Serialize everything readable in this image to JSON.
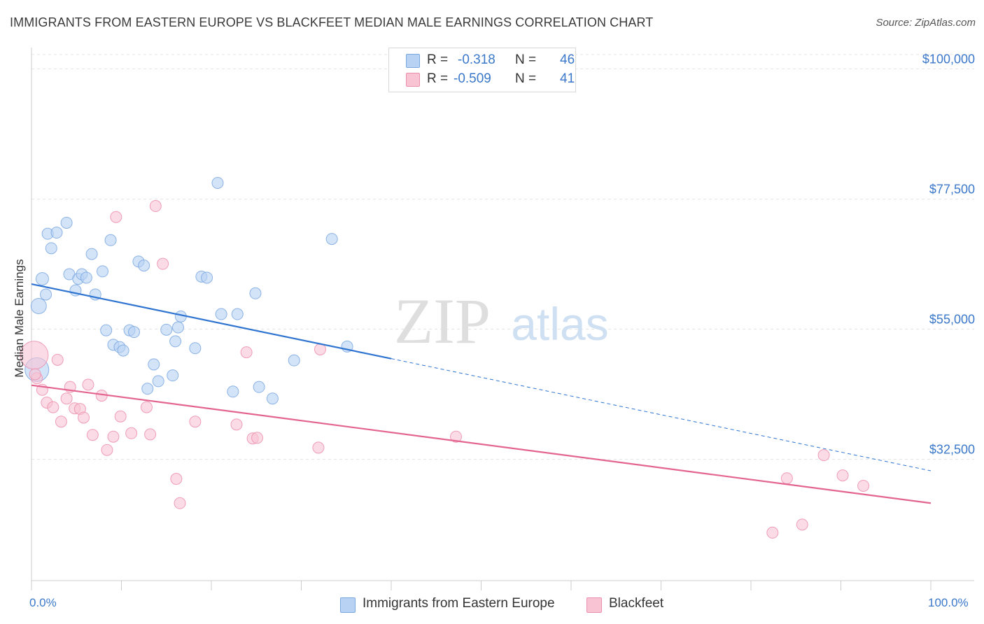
{
  "title": "IMMIGRANTS FROM EASTERN EUROPE VS BLACKFEET MEDIAN MALE EARNINGS CORRELATION CHART",
  "source": "Source: ZipAtlas.com",
  "watermark": {
    "zip": "ZIP",
    "atlas": "atlas"
  },
  "legend": {
    "series1": {
      "r_label": "R =",
      "r_value": "-0.318",
      "n_label": "N =",
      "n_value": "46"
    },
    "series2": {
      "r_label": "R =",
      "r_value": "-0.509",
      "n_label": "N =",
      "n_value": "41"
    }
  },
  "colors": {
    "blue_fill": "#b7d2f3",
    "blue_stroke": "#7aa7e0",
    "blue_line": "#2e74d0",
    "pink_fill": "#f8c3d3",
    "pink_stroke": "#ec8fac",
    "pink_line": "#e3648f",
    "axis_text": "#3b78c9",
    "grid": "#e4e4e4"
  },
  "chart_data": {
    "type": "scatter",
    "title": "IMMIGRANTS FROM EASTERN EUROPE VS BLACKFEET MEDIAN MALE EARNINGS CORRELATION CHART",
    "xlabel": "",
    "ylabel": "Median Male Earnings",
    "x_tick_labels": [
      "0.0%",
      "100.0%"
    ],
    "y_tick_labels": [
      "$32,500",
      "$55,000",
      "$77,500",
      "$100,000"
    ],
    "y_ticks": [
      32500,
      55000,
      77500,
      100000
    ],
    "xlim": [
      0,
      100
    ],
    "ylim": [
      11500,
      102500
    ],
    "grid": true,
    "legend_position": "top-center",
    "series": [
      {
        "name": "Immigrants from Eastern Europe",
        "color": "#b7d2f3",
        "points": [
          [
            0.6,
            48000
          ],
          [
            0.8,
            59000
          ],
          [
            1.2,
            63700
          ],
          [
            1.6,
            61000
          ],
          [
            1.8,
            71500
          ],
          [
            2.2,
            69000
          ],
          [
            2.8,
            71700
          ],
          [
            3.9,
            73400
          ],
          [
            4.2,
            64500
          ],
          [
            4.9,
            61700
          ],
          [
            5.2,
            63700
          ],
          [
            5.6,
            64500
          ],
          [
            6.1,
            63900
          ],
          [
            6.7,
            68000
          ],
          [
            7.1,
            61000
          ],
          [
            7.9,
            65000
          ],
          [
            8.3,
            54800
          ],
          [
            8.8,
            70400
          ],
          [
            9.1,
            52300
          ],
          [
            9.8,
            51900
          ],
          [
            10.2,
            51300
          ],
          [
            10.9,
            54800
          ],
          [
            11.4,
            54500
          ],
          [
            11.9,
            66700
          ],
          [
            12.5,
            66000
          ],
          [
            12.9,
            44700
          ],
          [
            13.6,
            48900
          ],
          [
            14.1,
            46000
          ],
          [
            15.0,
            54900
          ],
          [
            15.7,
            47000
          ],
          [
            16.0,
            52900
          ],
          [
            16.3,
            55300
          ],
          [
            16.6,
            57200
          ],
          [
            18.2,
            51700
          ],
          [
            18.9,
            64100
          ],
          [
            19.5,
            63900
          ],
          [
            20.7,
            80300
          ],
          [
            21.1,
            57600
          ],
          [
            22.4,
            44200
          ],
          [
            22.9,
            57600
          ],
          [
            24.9,
            61200
          ],
          [
            25.3,
            45000
          ],
          [
            26.8,
            43000
          ],
          [
            29.2,
            49600
          ],
          [
            33.4,
            70600
          ],
          [
            35.1,
            52000
          ]
        ]
      },
      {
        "name": "Blackfeet",
        "color": "#f8c3d3",
        "points": [
          [
            0.3,
            50500
          ],
          [
            0.6,
            46500
          ],
          [
            1.2,
            44500
          ],
          [
            1.7,
            42300
          ],
          [
            2.4,
            41500
          ],
          [
            2.9,
            49700
          ],
          [
            3.3,
            39000
          ],
          [
            3.9,
            43000
          ],
          [
            4.3,
            45000
          ],
          [
            4.8,
            41300
          ],
          [
            5.4,
            41200
          ],
          [
            5.8,
            39700
          ],
          [
            6.3,
            45400
          ],
          [
            6.8,
            36700
          ],
          [
            7.8,
            43500
          ],
          [
            8.4,
            34100
          ],
          [
            9.1,
            36400
          ],
          [
            9.4,
            74400
          ],
          [
            9.9,
            39900
          ],
          [
            11.1,
            37000
          ],
          [
            12.8,
            41500
          ],
          [
            13.2,
            36800
          ],
          [
            13.8,
            76300
          ],
          [
            14.6,
            66300
          ],
          [
            16.1,
            29100
          ],
          [
            16.5,
            24900
          ],
          [
            18.2,
            39000
          ],
          [
            22.8,
            38500
          ],
          [
            23.9,
            51000
          ],
          [
            24.6,
            36100
          ],
          [
            25.1,
            36200
          ],
          [
            31.9,
            34500
          ],
          [
            32.1,
            51500
          ],
          [
            47.2,
            36400
          ],
          [
            82.4,
            19800
          ],
          [
            84.0,
            29200
          ],
          [
            85.7,
            21200
          ],
          [
            88.1,
            33200
          ],
          [
            90.2,
            29700
          ],
          [
            92.5,
            27900
          ],
          [
            0.4,
            47200
          ]
        ]
      }
    ],
    "trendlines": [
      {
        "series": "Immigrants from Eastern Europe",
        "x": [
          0,
          40
        ],
        "y": [
          62800,
          49900
        ],
        "dashed_extension": {
          "x": [
            40,
            100
          ],
          "y": [
            49900,
            30500
          ]
        }
      },
      {
        "series": "Blackfeet",
        "x": [
          0,
          100
        ],
        "y": [
          45300,
          24900
        ]
      }
    ]
  }
}
